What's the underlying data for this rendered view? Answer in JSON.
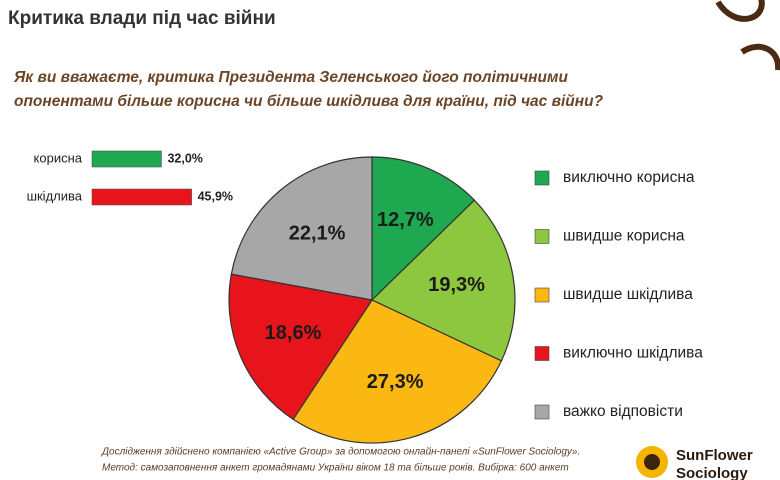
{
  "chart_data": [
    {
      "type": "bar",
      "orientation": "horizontal",
      "categories": [
        "корисна",
        "шкідлива"
      ],
      "values": [
        32.0,
        45.9
      ],
      "value_labels": [
        "32,0%",
        "45,9%"
      ],
      "colors": [
        "#1ea84f",
        "#e8141c"
      ]
    },
    {
      "type": "pie",
      "title": "Критика влади під час війни",
      "subtitle": [
        "Як ви вважаєте, критика Президента Зеленського його політичними",
        "опонентами більше корисна чи більше шкідлива для країни, під час війни?"
      ],
      "categories": [
        "виключно корисна",
        "швидше корисна",
        "швидше шкідлива",
        "виключно шкідлива",
        "важко відповісти"
      ],
      "values": [
        12.7,
        19.3,
        27.3,
        18.6,
        22.1
      ],
      "value_labels": [
        "12,7%",
        "19,3%",
        "27,3%",
        "18,6%",
        "22,1%"
      ],
      "colors": [
        "#1ea84f",
        "#8dc63f",
        "#fbb813",
        "#e8141c",
        "#a7a7a7"
      ]
    }
  ],
  "footer": [
    "Дослідження здійснено компанією «Active Group» за допомогою онлайн-панелі «SunFlower Sociology».",
    "Метод: самозаповнення анкет громадянами України віком 18 та більше років. Вибірка: 600 анкет"
  ],
  "logo": [
    "SunFlower",
    "Sociology"
  ]
}
